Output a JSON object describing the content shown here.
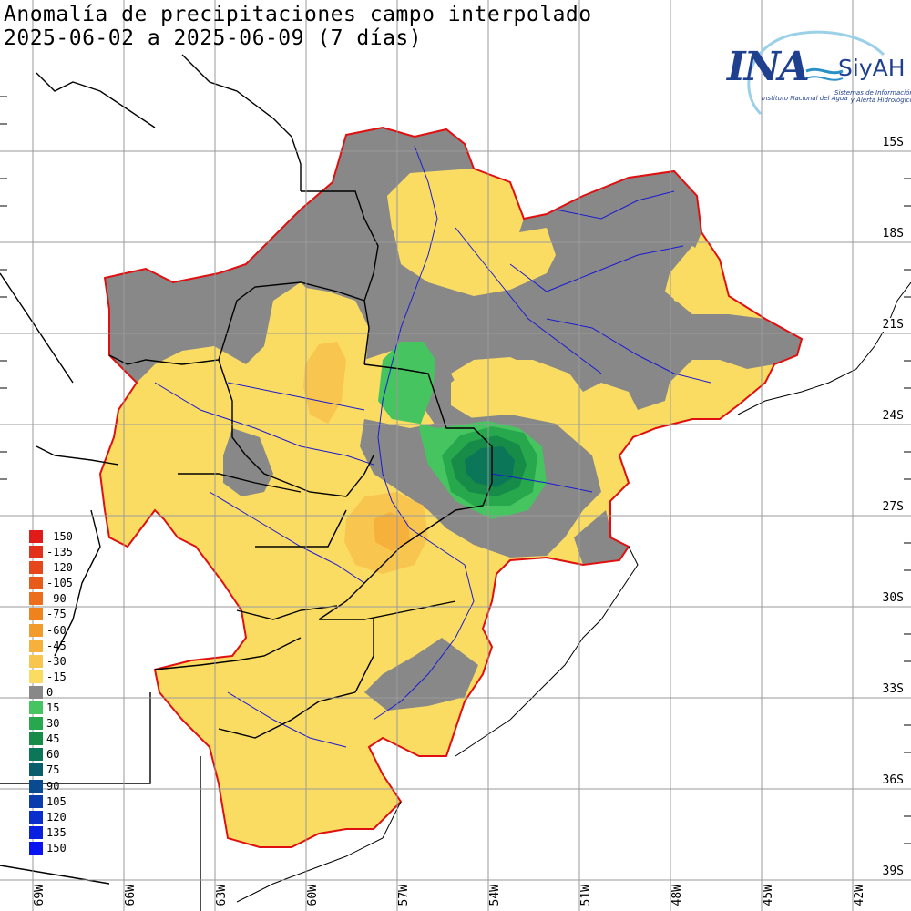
{
  "title": {
    "line1": "Anomalía de precipitaciones campo interpolado",
    "line2": "2025-06-02 a 2025-06-09 (7 días)"
  },
  "logo": {
    "ina": "INA",
    "siyah": "SiyAH",
    "subtitle": "Instituto Nacional del Agua",
    "tagline_1": "Sistemas de Información",
    "tagline_2": "y Alerta Hidrológico"
  },
  "lat_labels": [
    "15S",
    "18S",
    "21S",
    "24S",
    "27S",
    "30S",
    "33S",
    "36S",
    "39S"
  ],
  "lon_labels": [
    "69W",
    "66W",
    "63W",
    "60W",
    "57W",
    "54W",
    "51W",
    "48W",
    "45W",
    "42W"
  ],
  "legend": [
    {
      "label": "-150",
      "color": "#e11a1a"
    },
    {
      "label": "-135",
      "color": "#e3301a"
    },
    {
      "label": "-120",
      "color": "#e5461a"
    },
    {
      "label": "-105",
      "color": "#e85a1a"
    },
    {
      "label": "-90",
      "color": "#ec6e1c"
    },
    {
      "label": "-75",
      "color": "#f0821e"
    },
    {
      "label": "-60",
      "color": "#f39a2c"
    },
    {
      "label": "-45",
      "color": "#f6b03c"
    },
    {
      "label": "-30",
      "color": "#f8c64e"
    },
    {
      "label": "-15",
      "color": "#fbdc62"
    },
    {
      "label": "0",
      "color": "#888888"
    },
    {
      "label": "15",
      "color": "#46c460"
    },
    {
      "label": "30",
      "color": "#28a84c"
    },
    {
      "label": "45",
      "color": "#168c48"
    },
    {
      "label": "60",
      "color": "#0c7658"
    },
    {
      "label": "75",
      "color": "#0a5e6c"
    },
    {
      "label": "90",
      "color": "#0a4a8e"
    },
    {
      "label": "105",
      "color": "#0a3cae"
    },
    {
      "label": "120",
      "color": "#0a2ecc"
    },
    {
      "label": "135",
      "color": "#0a20e0"
    },
    {
      "label": "150",
      "color": "#0a14f0"
    }
  ],
  "colors": {
    "border_red": "#e01010",
    "rivers": "#1a1ad0",
    "grid": "#9a9a9a",
    "political": "#000000"
  }
}
